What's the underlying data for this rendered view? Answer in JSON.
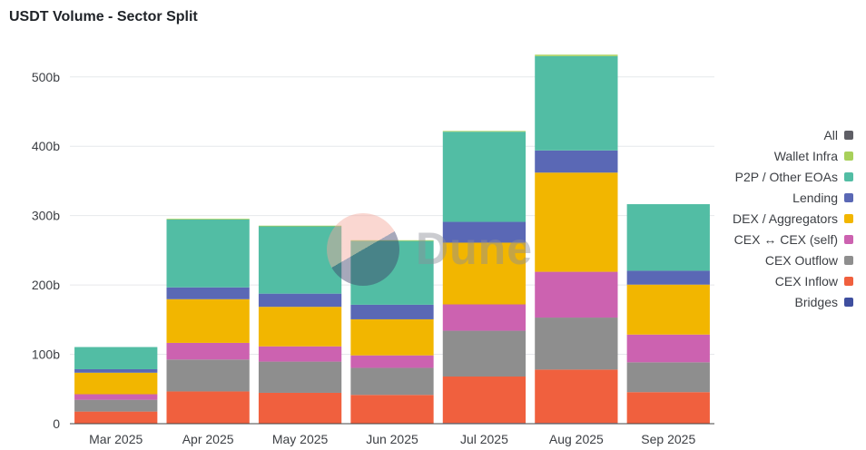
{
  "title": "USDT Volume - Sector Split",
  "watermark": "Dune",
  "chart_data": {
    "type": "bar",
    "stacked": true,
    "title": "USDT Volume - Sector Split",
    "xlabel": "",
    "ylabel": "",
    "ylim": [
      0,
      535
    ],
    "yticks": [
      0,
      100,
      200,
      300,
      400,
      500
    ],
    "ytick_labels": [
      "0",
      "100b",
      "200b",
      "300b",
      "400b",
      "500b"
    ],
    "legend_position": "right",
    "categories": [
      "Mar 2025",
      "Apr 2025",
      "May 2025",
      "Jun 2025",
      "Jul 2025",
      "Aug 2025",
      "Sep 2025"
    ],
    "series": [
      {
        "name": "Bridges",
        "color": "#3f4f9f",
        "values": [
          0.5,
          0.5,
          0.5,
          0.5,
          1,
          1,
          0.5
        ]
      },
      {
        "name": "CEX Inflow",
        "color": "#f0603e",
        "values": [
          17,
          46,
          44,
          41,
          67,
          77,
          45
        ]
      },
      {
        "name": "CEX Outflow",
        "color": "#8e8e8e",
        "values": [
          17,
          46,
          45,
          39,
          66,
          75,
          43
        ]
      },
      {
        "name": "CEX ↔ CEX (self)",
        "color": "#cc62b0",
        "values": [
          8,
          24,
          22,
          18,
          38,
          66,
          40
        ]
      },
      {
        "name": "DEX / Aggregators",
        "color": "#f2b600",
        "values": [
          31,
          63,
          57,
          52,
          89,
          143,
          72
        ]
      },
      {
        "name": "Lending",
        "color": "#5a68b5",
        "values": [
          5,
          17,
          19,
          21,
          30,
          32,
          20
        ]
      },
      {
        "name": "P2P / Other EOAs",
        "color": "#52bda4",
        "values": [
          32,
          98,
          97,
          92,
          130,
          136,
          96
        ]
      },
      {
        "name": "Wallet Infra",
        "color": "#a8d05a",
        "values": [
          0,
          1,
          1,
          1,
          1,
          2,
          0
        ]
      },
      {
        "name": "All",
        "color": "#5f5f66",
        "values": [
          0,
          0,
          0,
          0,
          0,
          0,
          0
        ]
      }
    ]
  }
}
